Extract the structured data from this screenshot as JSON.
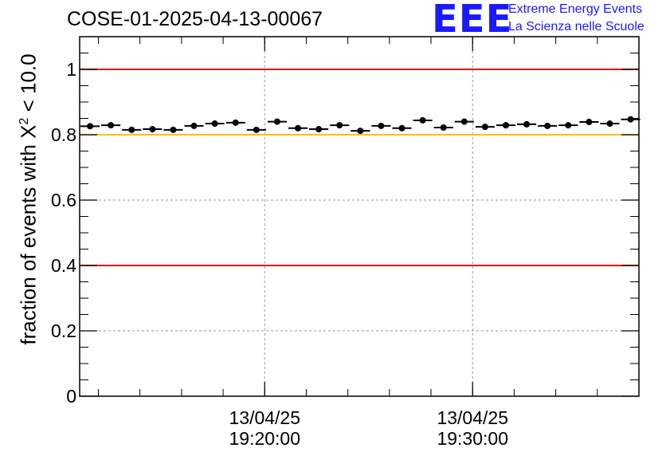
{
  "chart_data": {
    "type": "scatter",
    "title": "COSE-01-2025-04-13-00067",
    "ylabel_prefix": "fraction of events with X",
    "ylabel_sup": "2",
    "ylabel_suffix": " < 10.0",
    "xlabel": "",
    "ylim": [
      0,
      1.1
    ],
    "yticks": [
      {
        "value": 0,
        "label": "0"
      },
      {
        "value": 0.2,
        "label": "0.2"
      },
      {
        "value": 0.4,
        "label": "0.4"
      },
      {
        "value": 0.6,
        "label": "0.6"
      },
      {
        "value": 0.8,
        "label": "0.8"
      },
      {
        "value": 1,
        "label": "1"
      }
    ],
    "xlim_minutes": [
      11.1,
      38.0
    ],
    "xticks": [
      {
        "minute": 20,
        "date": "13/04/25",
        "time": "19:20:00"
      },
      {
        "minute": 30,
        "date": "13/04/25",
        "time": "19:30:00"
      }
    ],
    "grid": true,
    "reference_lines": [
      {
        "value": 1.0,
        "color": "#e8130c"
      },
      {
        "value": 0.8,
        "color": "#f5c400"
      },
      {
        "value": 0.4,
        "color": "#e8130c"
      }
    ],
    "bin_width_minutes": 1,
    "points": [
      {
        "minute": 11.6,
        "value": 0.826
      },
      {
        "minute": 12.6,
        "value": 0.829
      },
      {
        "minute": 13.6,
        "value": 0.815
      },
      {
        "minute": 14.6,
        "value": 0.817
      },
      {
        "minute": 15.6,
        "value": 0.815
      },
      {
        "minute": 16.6,
        "value": 0.827
      },
      {
        "minute": 17.6,
        "value": 0.834
      },
      {
        "minute": 18.6,
        "value": 0.837
      },
      {
        "minute": 19.6,
        "value": 0.815
      },
      {
        "minute": 20.6,
        "value": 0.84
      },
      {
        "minute": 21.6,
        "value": 0.82
      },
      {
        "minute": 22.6,
        "value": 0.817
      },
      {
        "minute": 23.6,
        "value": 0.829
      },
      {
        "minute": 24.6,
        "value": 0.812
      },
      {
        "minute": 25.6,
        "value": 0.827
      },
      {
        "minute": 26.6,
        "value": 0.82
      },
      {
        "minute": 27.6,
        "value": 0.844
      },
      {
        "minute": 28.6,
        "value": 0.822
      },
      {
        "minute": 29.6,
        "value": 0.84
      },
      {
        "minute": 30.6,
        "value": 0.824
      },
      {
        "minute": 31.6,
        "value": 0.829
      },
      {
        "minute": 32.6,
        "value": 0.832
      },
      {
        "minute": 33.6,
        "value": 0.827
      },
      {
        "minute": 34.6,
        "value": 0.829
      },
      {
        "minute": 35.6,
        "value": 0.839
      },
      {
        "minute": 36.6,
        "value": 0.834
      },
      {
        "minute": 37.6,
        "value": 0.847
      }
    ]
  },
  "logo": {
    "mark": "EEE",
    "line1": "Extreme Energy Events",
    "line2": "La Scienza nelle Scuole"
  }
}
